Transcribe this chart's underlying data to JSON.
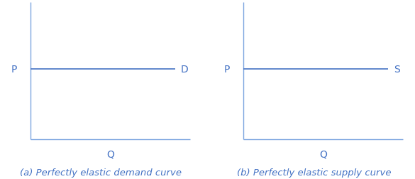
{
  "color": "#4472C4",
  "axis_color": "#7EA6E0",
  "bg_color": "#ffffff",
  "line_y": 0.55,
  "label_fontsize": 10,
  "caption_fontsize": 9.5,
  "caption_a": "(a) Perfectly elastic demand curve",
  "caption_b": "(b) Perfectly elastic supply curve",
  "curve_label_d": "D",
  "curve_label_s": "S",
  "xlim": [
    0,
    1
  ],
  "ylim": [
    0,
    1
  ],
  "axis_lw": 1.0,
  "curve_lw": 1.2
}
